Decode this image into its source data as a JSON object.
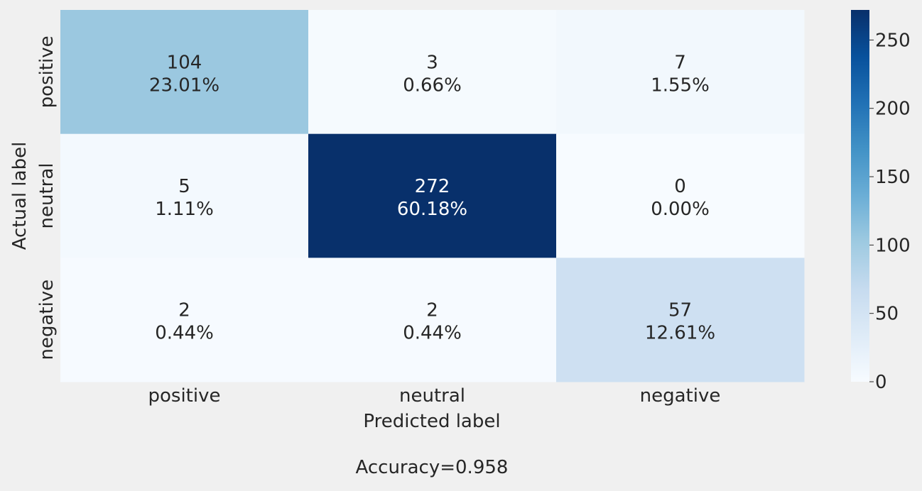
{
  "chart_data": {
    "type": "heatmap",
    "x_categories": [
      "positive",
      "neutral",
      "negative"
    ],
    "y_categories": [
      "positive",
      "neutral",
      "negative"
    ],
    "matrix": [
      [
        104,
        3,
        7
      ],
      [
        5,
        272,
        0
      ],
      [
        2,
        2,
        57
      ]
    ],
    "percentages": [
      [
        "23.01%",
        "0.66%",
        "1.55%"
      ],
      [
        "1.11%",
        "60.18%",
        "0.00%"
      ],
      [
        "0.44%",
        "0.44%",
        "12.61%"
      ]
    ],
    "xlabel": "Predicted label",
    "ylabel": "Actual label",
    "footer": "Accuracy=0.958",
    "colorbar": {
      "range": [
        0,
        272
      ],
      "ticks": [
        0,
        50,
        100,
        150,
        200,
        250
      ],
      "colormap": "Blues"
    },
    "text_color_dark": "#262626",
    "text_color_light": "#ffffff"
  }
}
